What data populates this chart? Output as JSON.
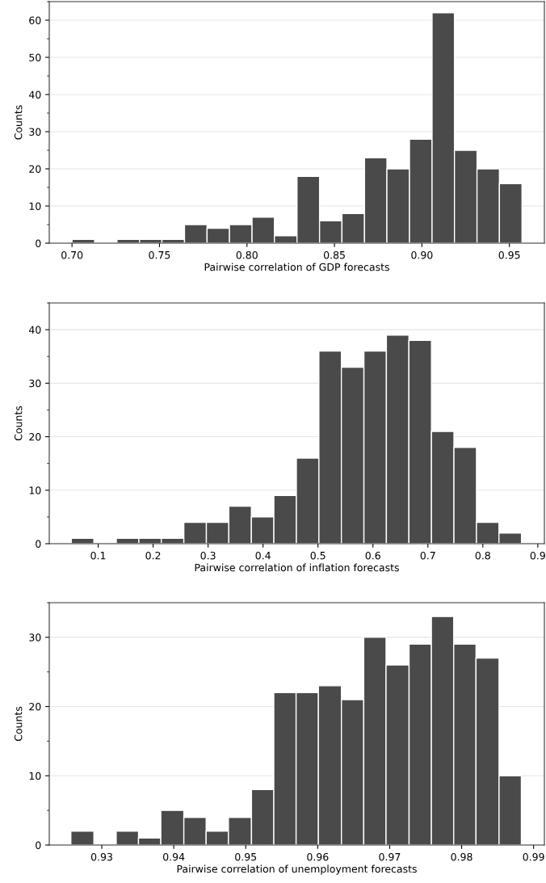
{
  "chart_data": [
    {
      "type": "histogram",
      "xlabel": "Pairwise correlation of GDP forecasts",
      "ylabel": "Counts",
      "color": "#4a4a4a",
      "bins": [
        0.7,
        0.7129,
        0.7257,
        0.7386,
        0.7514,
        0.7643,
        0.7772,
        0.79,
        0.8029,
        0.8157,
        0.8286,
        0.8415,
        0.8543,
        0.8672,
        0.88,
        0.8929,
        0.9058,
        0.9186,
        0.9315,
        0.9443,
        0.9572
      ],
      "values": [
        1,
        0,
        1,
        1,
        1,
        5,
        4,
        5,
        7,
        2,
        18,
        6,
        8,
        23,
        20,
        28,
        62,
        25,
        20,
        16
      ],
      "xlim": [
        0.687,
        0.97
      ],
      "ylim": [
        0,
        65
      ],
      "xticks": [
        {
          "value": 0.7,
          "label": "0.70"
        },
        0.75,
        {
          "value": 0.8,
          "label": "0.80"
        },
        0.85,
        {
          "value": 0.9,
          "label": "0.90"
        },
        0.95
      ],
      "yticks": [
        0,
        10,
        20,
        30,
        40,
        50,
        60
      ],
      "grid": "y"
    },
    {
      "type": "histogram",
      "xlabel": "Pairwise correlation of inflation forecasts",
      "ylabel": "Counts",
      "color": "#4a4a4a",
      "bins": [
        0.0511,
        0.0921,
        0.133,
        0.174,
        0.2149,
        0.2559,
        0.2969,
        0.3378,
        0.3788,
        0.4197,
        0.4607,
        0.5017,
        0.5426,
        0.5836,
        0.6245,
        0.6655,
        0.7065,
        0.7474,
        0.7884,
        0.8293,
        0.8703
      ],
      "values": [
        1,
        0,
        1,
        1,
        1,
        4,
        4,
        7,
        5,
        9,
        16,
        36,
        33,
        36,
        39,
        38,
        21,
        18,
        4,
        2
      ],
      "xlim": [
        0.011,
        0.912
      ],
      "ylim": [
        0,
        45
      ],
      "xticks": [
        0.1,
        0.2,
        0.3,
        0.4,
        0.5,
        0.6,
        0.7,
        0.8,
        0.9
      ],
      "yticks": [
        0,
        10,
        20,
        30,
        40
      ],
      "grid": "y"
    },
    {
      "type": "histogram",
      "xlabel": "Pairwise correlation of unemployment forecasts",
      "ylabel": "Counts",
      "color": "#4a4a4a",
      "bins": [
        0.9257,
        0.9289,
        0.932,
        0.9351,
        0.9382,
        0.9414,
        0.9445,
        0.9476,
        0.9508,
        0.9539,
        0.957,
        0.9601,
        0.9633,
        0.9664,
        0.9695,
        0.9727,
        0.9758,
        0.9789,
        0.982,
        0.9852,
        0.9883
      ],
      "values": [
        2,
        0,
        2,
        1,
        5,
        4,
        2,
        4,
        8,
        22,
        22,
        23,
        21,
        30,
        26,
        29,
        33,
        29,
        27,
        10
      ],
      "xlim": [
        0.9227,
        0.9915
      ],
      "ylim": [
        0,
        35
      ],
      "xticks": [
        0.93,
        0.94,
        0.95,
        0.96,
        0.97,
        0.98,
        0.99
      ],
      "yticks": [
        0,
        10,
        20,
        30
      ],
      "grid": "y"
    }
  ]
}
